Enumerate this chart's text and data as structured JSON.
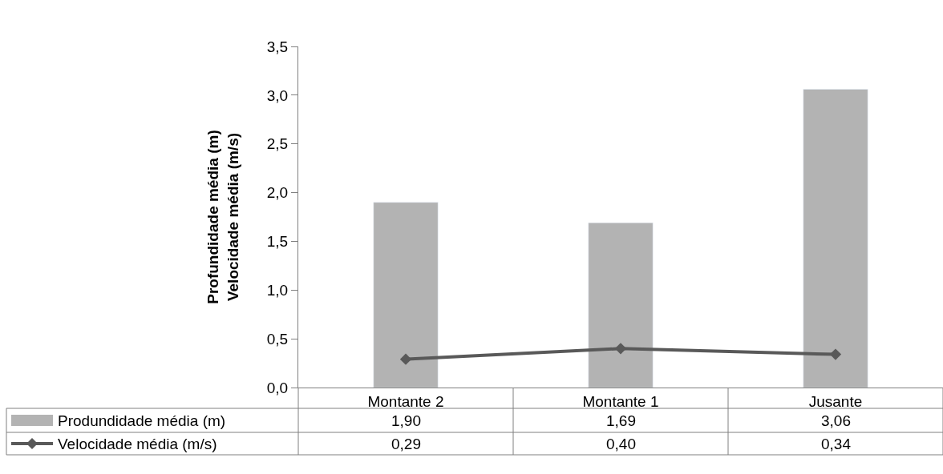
{
  "chart_data": {
    "type": "bar",
    "ylabel": "Profundidade média (m)\nVelocidade média (m/s)",
    "categories": [
      "Montante 2",
      "Montante 1",
      "Jusante"
    ],
    "series": [
      {
        "name": "Produndidade média (m)",
        "color": "#b3b3b3",
        "values": [
          1.9,
          1.69,
          3.06
        ],
        "value_labels": [
          "1,90",
          "1,69",
          "3,06"
        ]
      },
      {
        "name": "Velocidade média (m/s)",
        "type": "line",
        "color": "#595959",
        "marker": "diamond",
        "values": [
          0.29,
          0.4,
          0.34
        ],
        "value_labels": [
          "0,29",
          "0,40",
          "0,34"
        ]
      }
    ],
    "ylim": [
      0,
      3.5
    ],
    "yticks": [
      {
        "value": 0,
        "label": "0,0"
      },
      {
        "value": 0.5,
        "label": "0,5"
      },
      {
        "value": 1,
        "label": "1,0"
      },
      {
        "value": 1.5,
        "label": "1,5"
      },
      {
        "value": 2,
        "label": "2,0"
      },
      {
        "value": 2.5,
        "label": "2,5"
      },
      {
        "value": 3,
        "label": "3,0"
      },
      {
        "value": 3.5,
        "label": "3,5"
      }
    ],
    "legend": "bottom left"
  }
}
